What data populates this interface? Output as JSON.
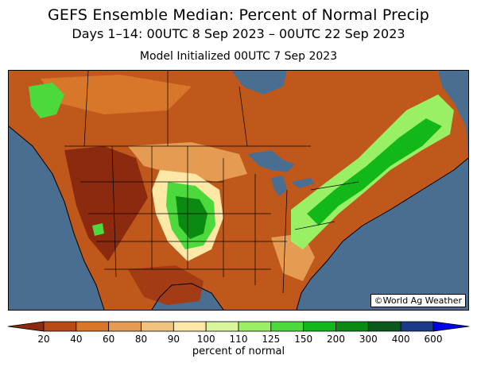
{
  "header": {
    "title": "GEFS Ensemble Median: Percent of Normal Precip",
    "period": "Days 1–14: 00UTC 8 Sep 2023 – 00UTC 22 Sep 2023",
    "init": "Model Initialized 00UTC 7 Sep 2023"
  },
  "map": {
    "credit": "©World Ag Weather",
    "ocean_color": "#4a6e92",
    "region": "North America (CONUS, southern Canada, northern Mexico)"
  },
  "legend": {
    "label": "percent of normal",
    "ticks": [
      "20",
      "40",
      "60",
      "80",
      "90",
      "100",
      "110",
      "125",
      "150",
      "200",
      "300",
      "400",
      "600"
    ],
    "colors": [
      "#8b2a0e",
      "#b84a16",
      "#d8762a",
      "#e59c52",
      "#f2c37c",
      "#fde8a8",
      "#d9f79a",
      "#9af065",
      "#4cd93c",
      "#12b81a",
      "#0a8a10",
      "#0a5a1c",
      "#1a3a8a",
      "#0000e6"
    ]
  }
}
